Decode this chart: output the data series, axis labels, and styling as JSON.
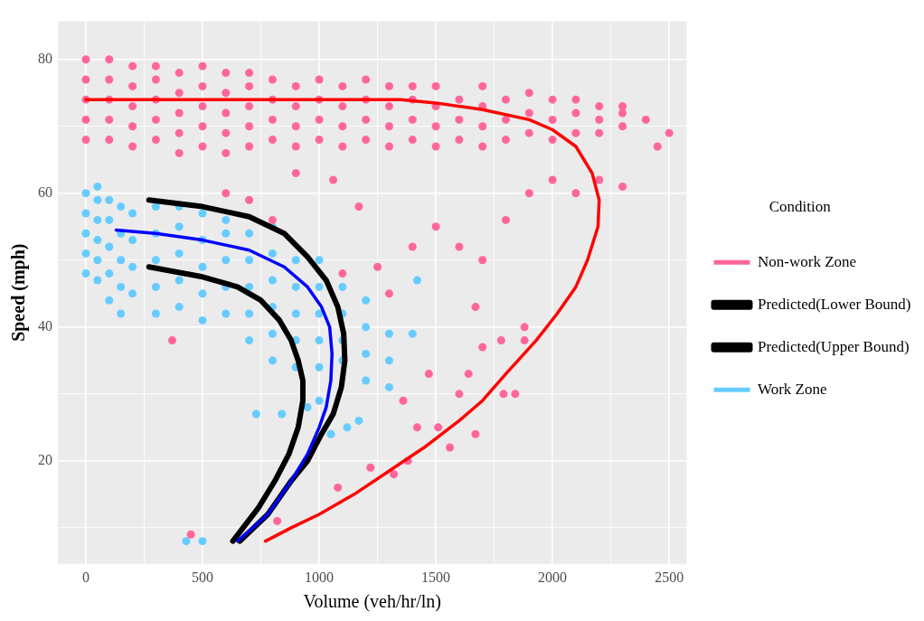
{
  "chart_data": {
    "type": "scatter",
    "xlabel": "Volume (veh/hr/ln)",
    "ylabel": "Speed (mph)",
    "legend_title": "Condition",
    "legend": "right",
    "grid": true,
    "marker": "circle",
    "xlim": [
      -120,
      2575
    ],
    "ylim": [
      4.6,
      85.7
    ],
    "xticks": [
      0,
      {
        "value": 250,
        "label": null
      },
      500,
      {
        "value": 750,
        "label": null
      },
      1000,
      {
        "value": 1250,
        "label": null
      },
      1500,
      {
        "value": 1750,
        "label": null
      },
      2000,
      {
        "value": 2250,
        "label": null
      },
      2500
    ],
    "yticks": [
      {
        "value": 10,
        "label": null
      },
      20,
      {
        "value": 30,
        "label": null
      },
      40,
      {
        "value": 50,
        "label": null
      },
      60,
      {
        "value": 70,
        "label": null
      },
      80
    ],
    "series": [
      {
        "name": "Non-work Zone",
        "color": "#ff6699",
        "x": [
          0,
          0,
          0,
          0,
          0,
          100,
          100,
          100,
          100,
          100,
          200,
          200,
          200,
          200,
          200,
          300,
          300,
          300,
          300,
          300,
          400,
          400,
          400,
          400,
          400,
          500,
          500,
          500,
          500,
          500,
          600,
          600,
          600,
          600,
          600,
          700,
          700,
          700,
          700,
          700,
          800,
          800,
          800,
          800,
          900,
          900,
          900,
          900,
          1000,
          1000,
          1000,
          1000,
          1100,
          1100,
          1100,
          1100,
          1200,
          1200,
          1200,
          1200,
          1300,
          1300,
          1300,
          1300,
          1400,
          1400,
          1400,
          1400,
          1500,
          1500,
          1500,
          1500,
          1600,
          1600,
          1600,
          1700,
          1700,
          1700,
          1700,
          1800,
          1800,
          1800,
          1900,
          1900,
          1900,
          2000,
          2000,
          2000,
          2100,
          2100,
          2100,
          2200,
          2200,
          2200,
          2300,
          2300,
          2300,
          2400,
          2500,
          2450,
          370,
          450,
          820,
          1080,
          1220,
          1320,
          1360,
          1380,
          1420,
          1470,
          1510,
          1560,
          1600,
          1640,
          1670,
          1670,
          1700,
          1780,
          1790,
          1840,
          1880,
          1880,
          1250,
          1300,
          1500,
          1170,
          1060,
          900,
          600,
          700,
          800,
          1400,
          1600,
          1700,
          1800,
          1900,
          2000,
          2100,
          2200,
          2300,
          1100
        ],
        "values": [
          68,
          71,
          74,
          77,
          80,
          68,
          71,
          74,
          77,
          80,
          67,
          70,
          73,
          76,
          79,
          68,
          71,
          74,
          77,
          79,
          66,
          69,
          72,
          75,
          78,
          67,
          70,
          73,
          76,
          79,
          66,
          69,
          72,
          75,
          78,
          67,
          70,
          73,
          76,
          78,
          68,
          71,
          74,
          77,
          67,
          70,
          73,
          76,
          68,
          71,
          74,
          77,
          67,
          70,
          73,
          76,
          68,
          71,
          74,
          77,
          67,
          70,
          73,
          76,
          68,
          71,
          74,
          76,
          67,
          70,
          73,
          76,
          68,
          71,
          74,
          67,
          70,
          73,
          76,
          68,
          71,
          74,
          69,
          72,
          75,
          68,
          71,
          74,
          69,
          72,
          74,
          69,
          71,
          73,
          70,
          72,
          73,
          71,
          69,
          67,
          38,
          9,
          11,
          16,
          19,
          18,
          29,
          20,
          25,
          33,
          25,
          22,
          30,
          33,
          24,
          43,
          37,
          38,
          30,
          30,
          40,
          38,
          49,
          45,
          55,
          58,
          62,
          63,
          60,
          59,
          56,
          52,
          52,
          50,
          56,
          60,
          62,
          60,
          62,
          61,
          48
        ]
      },
      {
        "name": "Predicted(Lower Bound)",
        "type": "line",
        "marker": "none",
        "color": "#000000",
        "x": [
          270,
          500,
          650,
          750,
          830,
          880,
          910,
          930,
          930,
          910,
          870,
          810,
          740,
          630
        ],
        "values": [
          49,
          47.5,
          46,
          44,
          41,
          38,
          35,
          32,
          29,
          25,
          21,
          17,
          13,
          8
        ]
      },
      {
        "name": "Predicted(Upper Bound)",
        "type": "line",
        "marker": "none",
        "color": "#000000",
        "x": [
          270,
          500,
          700,
          850,
          950,
          1030,
          1080,
          1105,
          1110,
          1095,
          1060,
          1010,
          950,
          880,
          780,
          660
        ],
        "values": [
          59,
          58,
          56.5,
          54,
          50.5,
          47,
          43,
          39,
          35,
          31,
          27,
          24,
          20,
          17,
          12,
          8
        ]
      },
      {
        "name": "Work Zone",
        "color": "#66ccff",
        "x": [
          0,
          0,
          0,
          0,
          0,
          50,
          50,
          50,
          50,
          50,
          50,
          100,
          100,
          100,
          100,
          100,
          150,
          150,
          150,
          150,
          150,
          200,
          200,
          200,
          200,
          300,
          300,
          300,
          300,
          300,
          400,
          400,
          400,
          400,
          400,
          500,
          500,
          500,
          500,
          500,
          600,
          600,
          600,
          600,
          600,
          700,
          700,
          700,
          700,
          700,
          800,
          800,
          800,
          800,
          800,
          800,
          900,
          900,
          900,
          900,
          900,
          1000,
          1000,
          1000,
          1000,
          1000,
          1000,
          1100,
          1100,
          1100,
          1100,
          1200,
          1200,
          1200,
          1200,
          1300,
          1300,
          1300,
          1400,
          1420,
          430,
          500,
          730,
          840,
          1050,
          1170,
          1120,
          950
        ],
        "values": [
          48,
          51,
          54,
          57,
          60,
          47,
          50,
          53,
          56,
          59,
          61,
          44,
          48,
          52,
          56,
          59,
          42,
          46,
          50,
          54,
          58,
          45,
          49,
          53,
          57,
          42,
          46,
          50,
          54,
          58,
          43,
          47,
          51,
          55,
          58,
          41,
          45,
          49,
          53,
          57,
          42,
          46,
          50,
          54,
          56,
          38,
          42,
          46,
          50,
          54,
          35,
          39,
          43,
          47,
          51,
          55,
          34,
          38,
          42,
          46,
          50,
          29,
          34,
          38,
          42,
          46,
          50,
          35,
          38,
          42,
          46,
          32,
          36,
          40,
          44,
          31,
          35,
          39,
          39,
          47,
          8,
          8,
          27,
          27,
          24,
          26,
          25,
          28
        ]
      },
      {
        "type": "line",
        "marker": "none",
        "color": "#ff0000",
        "x": [
          0,
          1350,
          1500,
          1700,
          1900,
          2000,
          2100,
          2170,
          2200,
          2195,
          2150,
          2100,
          2020,
          1930,
          1800,
          1700,
          1600,
          1450,
          1300,
          1150,
          1000,
          880,
          770
        ],
        "values": [
          74,
          74,
          73.5,
          72.5,
          71,
          69.5,
          67,
          63,
          59,
          55,
          50,
          46,
          42,
          38,
          33,
          29,
          26,
          22,
          18.5,
          15,
          12,
          10,
          8
        ]
      },
      {
        "type": "line",
        "marker": "none",
        "color": "#0000ff",
        "x": [
          130,
          300,
          500,
          700,
          850,
          950,
          1010,
          1045,
          1055,
          1050,
          1030,
          1000,
          950,
          880,
          780,
          650
        ],
        "values": [
          54.5,
          54,
          53,
          51.5,
          49,
          46,
          43,
          40,
          36,
          32,
          28,
          25,
          21,
          17,
          12,
          8
        ]
      }
    ]
  }
}
